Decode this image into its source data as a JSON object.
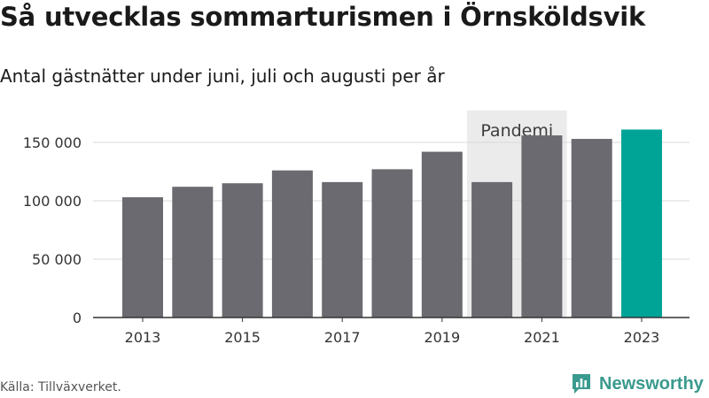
{
  "header": {
    "title": "Så utvecklas sommarturismen i Örnsköldsvik",
    "subtitle": "Antal gästnätter under juni, juli och augusti per år"
  },
  "footer": {
    "source": "Källa: Tillväxverket.",
    "brand": "Newsworthy",
    "brand_icon": "newsworthy-chart-logo-icon"
  },
  "colors": {
    "bar": "#6b6a70",
    "highlight": "#00a497",
    "band": "#ebebeb",
    "grid": "#d9d9d9",
    "axis": "#333333",
    "text": "#333333",
    "brand": "#3a9a8e"
  },
  "chart_data": {
    "type": "bar",
    "categories": [
      "2013",
      "2014",
      "2015",
      "2016",
      "2017",
      "2018",
      "2019",
      "2020",
      "2021",
      "2022",
      "2023"
    ],
    "values": [
      103000,
      112000,
      115000,
      126000,
      116000,
      127000,
      142000,
      116000,
      156000,
      153000,
      161000
    ],
    "highlight_category": "2023",
    "x_tick_labels": [
      "2013",
      "2015",
      "2017",
      "2019",
      "2021",
      "2023"
    ],
    "y_ticks": [
      {
        "value": 0,
        "label": "0"
      },
      {
        "value": 50000,
        "label": "50 000"
      },
      {
        "value": 100000,
        "label": "100 000"
      },
      {
        "value": 150000,
        "label": "150 000"
      }
    ],
    "ylim": [
      0,
      175000
    ],
    "grid": true,
    "annotation": {
      "label": "Pandemi",
      "from": "2020",
      "to": "2021"
    },
    "title": "Så utvecklas sommarturismen i Örnsköldsvik",
    "subtitle": "Antal gästnätter under juni, juli och augusti per år",
    "xlabel": "",
    "ylabel": ""
  }
}
